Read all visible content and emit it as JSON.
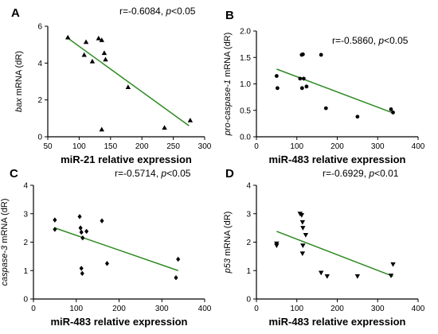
{
  "chart_data": [
    {
      "type": "scatter",
      "panel_letter": "A",
      "annotation": {
        "r_text": "r=-0.6084, ",
        "p_symbol": "p",
        "p_text": "<0.05"
      },
      "xlabel": "miR-21 relative expression",
      "ylabel": {
        "italic": "bax",
        "plain": " mRNA (dR)"
      },
      "xlim": [
        50,
        300
      ],
      "ylim": [
        0,
        6
      ],
      "xticks": [
        50,
        100,
        150,
        200,
        250,
        300
      ],
      "yticks": [
        0,
        2,
        4,
        6
      ],
      "marker": "triangle-up",
      "points": [
        {
          "x": 82,
          "y": 5.4
        },
        {
          "x": 108,
          "y": 4.45
        },
        {
          "x": 111,
          "y": 5.15
        },
        {
          "x": 121,
          "y": 4.1
        },
        {
          "x": 131,
          "y": 5.35
        },
        {
          "x": 136,
          "y": 5.25
        },
        {
          "x": 140,
          "y": 4.55
        },
        {
          "x": 142,
          "y": 4.2
        },
        {
          "x": 136,
          "y": 0.4
        },
        {
          "x": 178,
          "y": 2.7
        },
        {
          "x": 236,
          "y": 0.5
        },
        {
          "x": 277,
          "y": 0.9
        }
      ],
      "fit_line": {
        "x": [
          80,
          275
        ],
        "y": [
          5.4,
          0.6
        ],
        "color": "#2e8b22"
      },
      "marker_color": "#000000"
    },
    {
      "type": "scatter",
      "panel_letter": "B",
      "annotation": {
        "r_text": "r=-0.5860, ",
        "p_symbol": "p",
        "p_text": "<0.05"
      },
      "xlabel": "miR-483 relative expression",
      "ylabel": {
        "italic": "pro-caspase-1",
        "plain": " mRNA (dR)"
      },
      "xlim": [
        0,
        400
      ],
      "ylim": [
        0,
        2.0
      ],
      "xticks": [
        0,
        100,
        200,
        300,
        400
      ],
      "yticks": [
        0.0,
        0.5,
        1.0,
        1.5,
        2.0
      ],
      "marker": "circle",
      "points": [
        {
          "x": 50,
          "y": 1.15
        },
        {
          "x": 52,
          "y": 0.92
        },
        {
          "x": 108,
          "y": 1.1
        },
        {
          "x": 112,
          "y": 1.55
        },
        {
          "x": 115,
          "y": 1.56
        },
        {
          "x": 117,
          "y": 1.1
        },
        {
          "x": 113,
          "y": 0.92
        },
        {
          "x": 124,
          "y": 0.95
        },
        {
          "x": 160,
          "y": 1.55
        },
        {
          "x": 172,
          "y": 0.54
        },
        {
          "x": 250,
          "y": 0.38
        },
        {
          "x": 333,
          "y": 0.52
        },
        {
          "x": 338,
          "y": 0.46
        }
      ],
      "fit_line": {
        "x": [
          50,
          338
        ],
        "y": [
          1.28,
          0.45
        ],
        "color": "#2e8b22"
      },
      "marker_color": "#000000"
    },
    {
      "type": "scatter",
      "panel_letter": "C",
      "annotation": {
        "r_text": "r=-0.5714, ",
        "p_symbol": "p",
        "p_text": "<0.05"
      },
      "xlabel": "miR-483 relative expression",
      "ylabel": {
        "italic": "caspase-3",
        "plain": " mRNA (dR)"
      },
      "xlim": [
        0,
        400
      ],
      "ylim": [
        0,
        4
      ],
      "xticks": [
        0,
        100,
        200,
        300,
        400
      ],
      "yticks": [
        0,
        1,
        2,
        3,
        4
      ],
      "marker": "diamond",
      "points": [
        {
          "x": 50,
          "y": 2.78
        },
        {
          "x": 50,
          "y": 2.45
        },
        {
          "x": 108,
          "y": 2.9
        },
        {
          "x": 110,
          "y": 2.5
        },
        {
          "x": 112,
          "y": 2.35
        },
        {
          "x": 115,
          "y": 2.15
        },
        {
          "x": 124,
          "y": 2.38
        },
        {
          "x": 112,
          "y": 1.08
        },
        {
          "x": 114,
          "y": 0.9
        },
        {
          "x": 160,
          "y": 2.75
        },
        {
          "x": 172,
          "y": 1.25
        },
        {
          "x": 333,
          "y": 0.75
        },
        {
          "x": 338,
          "y": 1.4
        }
      ],
      "fit_line": {
        "x": [
          50,
          338
        ],
        "y": [
          2.5,
          1.0
        ],
        "color": "#2e8b22"
      },
      "marker_color": "#000000"
    },
    {
      "type": "scatter",
      "panel_letter": "D",
      "annotation": {
        "r_text": "r=-0.6929, ",
        "p_symbol": "p",
        "p_text": "<0.01"
      },
      "xlabel": "miR-483 relative expression",
      "ylabel": {
        "italic": "p53",
        "plain": " mRNA (dR)"
      },
      "xlim": [
        0,
        400
      ],
      "ylim": [
        0,
        4
      ],
      "xticks": [
        0,
        100,
        200,
        300,
        400
      ],
      "yticks": [
        0,
        1,
        2,
        3,
        4
      ],
      "points_marker_down": true,
      "marker": "triangle-down",
      "points": [
        {
          "x": 50,
          "y": 1.95
        },
        {
          "x": 50,
          "y": 1.88
        },
        {
          "x": 108,
          "y": 3.0
        },
        {
          "x": 112,
          "y": 2.95
        },
        {
          "x": 114,
          "y": 2.7
        },
        {
          "x": 115,
          "y": 2.5
        },
        {
          "x": 122,
          "y": 2.25
        },
        {
          "x": 115,
          "y": 1.88
        },
        {
          "x": 114,
          "y": 1.6
        },
        {
          "x": 160,
          "y": 0.92
        },
        {
          "x": 175,
          "y": 0.8
        },
        {
          "x": 250,
          "y": 0.8
        },
        {
          "x": 333,
          "y": 0.82
        },
        {
          "x": 338,
          "y": 1.22
        }
      ],
      "fit_line": {
        "x": [
          50,
          338
        ],
        "y": [
          2.38,
          0.8
        ],
        "color": "#2e8b22"
      },
      "marker_color": "#000000"
    }
  ]
}
